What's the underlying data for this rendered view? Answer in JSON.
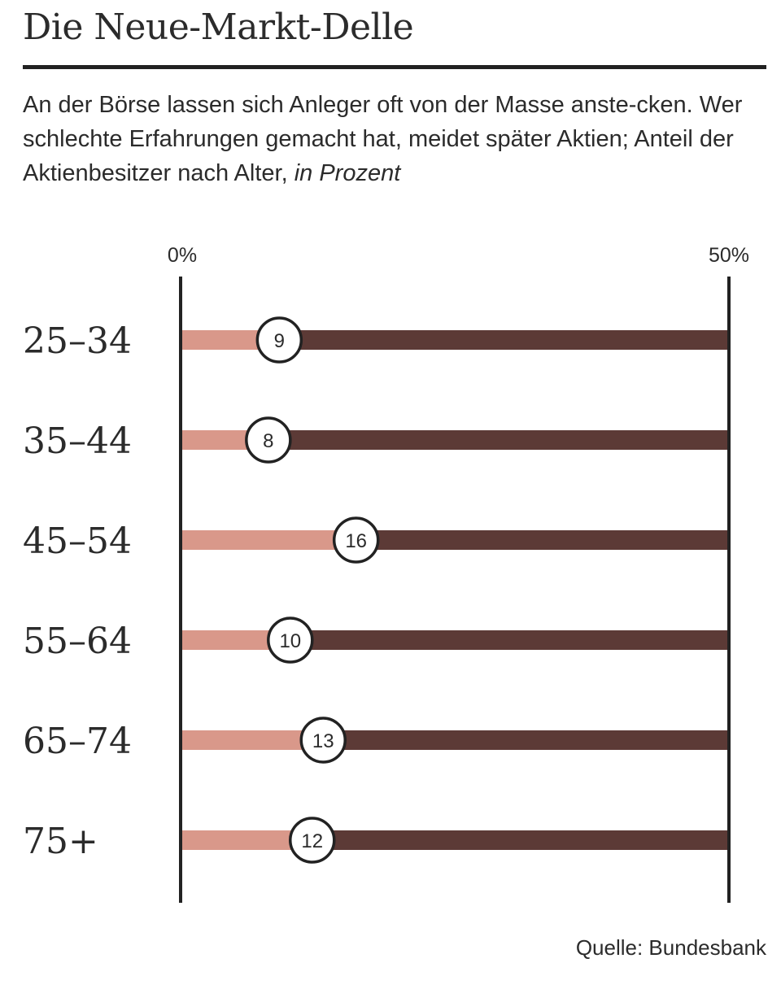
{
  "title": "Die Neue-Markt-Delle",
  "subtitle_main": "An der Börse lassen sich Anleger oft von der Masse anste-cken. Wer schlechte Erfahrungen gemacht hat, meidet später Aktien; Anteil der Aktienbesitzer nach Alter,",
  "subtitle_unit": "in Prozent",
  "source": "Quelle: Bundesbank",
  "colors": {
    "fill_bar": "#d9988a",
    "track_bar": "#5c3a36",
    "axis": "#222222",
    "text": "#2b2b2b"
  },
  "chart_data": {
    "type": "bar",
    "orientation": "horizontal",
    "categories": [
      "25–34",
      "35–44",
      "45–54",
      "55–64",
      "65–74",
      "75+"
    ],
    "values": [
      9,
      8,
      16,
      10,
      13,
      12
    ],
    "xlim": [
      0,
      50
    ],
    "tick_labels": [
      "0%",
      "50%"
    ],
    "value_labels": [
      "9",
      "8",
      "16",
      "10",
      "13",
      "12"
    ]
  }
}
